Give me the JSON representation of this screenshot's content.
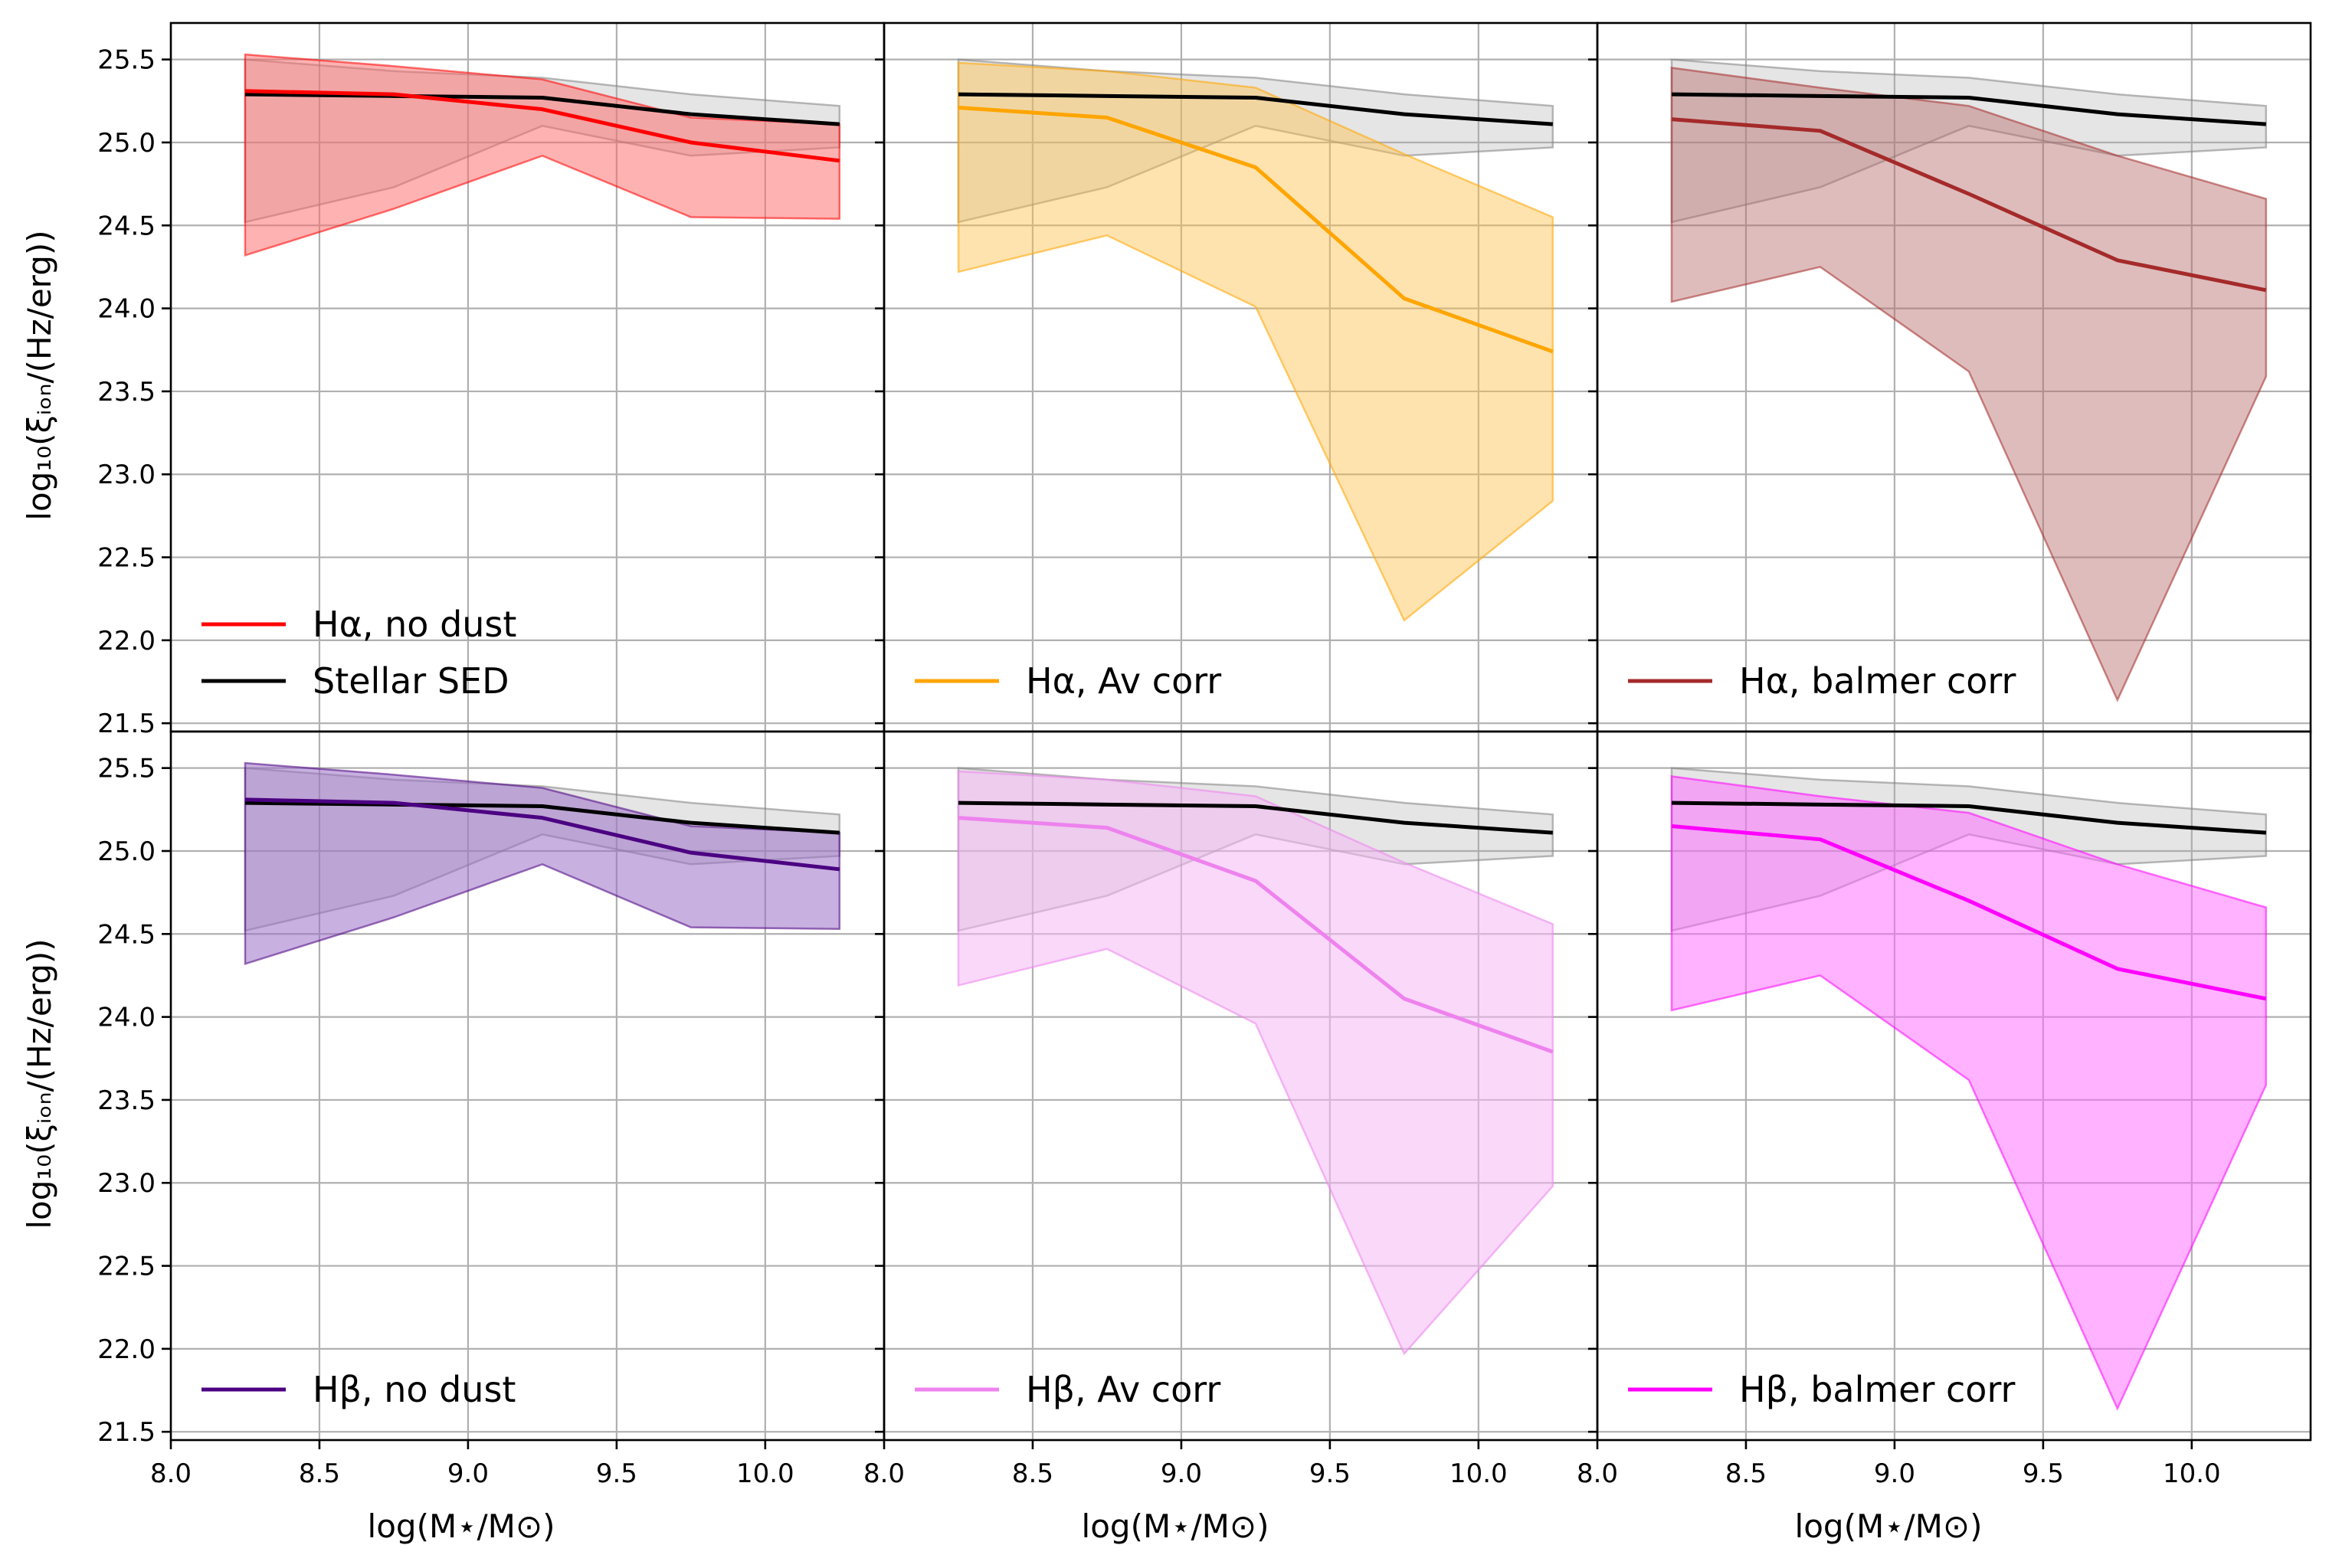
{
  "figure": {
    "ylabel": "log₁₀(ξᵢₒₙ/(Hz/erg))",
    "xlabel": "log(M⋆/M⊙)"
  },
  "chart_data": {
    "type": "line",
    "layout": "2x3 grid of panels sharing axes",
    "xlim": [
      8.0,
      10.4
    ],
    "ylim": [
      21.45,
      25.72
    ],
    "xticks": [
      "8.0",
      "8.5",
      "9.0",
      "9.5",
      "10.0"
    ],
    "yticks": [
      "21.5",
      "22.0",
      "22.5",
      "23.0",
      "23.5",
      "24.0",
      "24.5",
      "25.0",
      "25.5"
    ],
    "grid": true,
    "x": [
      8.25,
      8.75,
      9.25,
      9.75,
      10.25
    ],
    "reference": {
      "name": "Stellar SED",
      "color": "#000000",
      "values": [
        25.29,
        25.28,
        25.27,
        25.17,
        25.11
      ],
      "lower": [
        24.52,
        24.73,
        25.1,
        24.92,
        24.97
      ],
      "upper": [
        25.5,
        25.43,
        25.39,
        25.29,
        25.22
      ]
    },
    "panels": [
      {
        "name": "Hα, no dust",
        "color": "#ff0000",
        "fill": "#ff6666",
        "fill_opacity": 0.5,
        "values": [
          25.31,
          25.29,
          25.2,
          25.0,
          24.89
        ],
        "lower": [
          24.32,
          24.6,
          24.92,
          24.55,
          24.54
        ],
        "upper": [
          25.53,
          25.46,
          25.38,
          25.15,
          25.11
        ],
        "legend": [
          "Hα, no dust",
          "Stellar SED"
        ]
      },
      {
        "name": "Hα, Av corr",
        "color": "#ffa500",
        "fill": "#ffc04d",
        "fill_opacity": 0.45,
        "values": [
          25.21,
          25.15,
          24.85,
          24.06,
          23.74
        ],
        "lower": [
          24.22,
          24.44,
          24.01,
          22.12,
          22.84
        ],
        "upper": [
          25.48,
          25.43,
          25.33,
          24.93,
          24.55
        ],
        "legend": [
          "Hα, Av corr"
        ]
      },
      {
        "name": "Hα, balmer corr",
        "color": "#a52a2a",
        "fill": "#b56a6a",
        "fill_opacity": 0.45,
        "values": [
          25.14,
          25.07,
          24.69,
          24.29,
          24.11
        ],
        "lower": [
          24.04,
          24.25,
          23.62,
          21.64,
          23.59
        ],
        "upper": [
          25.45,
          25.33,
          25.22,
          24.92,
          24.66
        ],
        "legend": [
          "Hα, balmer corr"
        ]
      },
      {
        "name": "Hβ, no dust",
        "color": "#4b0082",
        "fill": "#9b6fc7",
        "fill_opacity": 0.55,
        "values": [
          25.31,
          25.29,
          25.2,
          24.99,
          24.89
        ],
        "lower": [
          24.32,
          24.6,
          24.92,
          24.54,
          24.53
        ],
        "upper": [
          25.53,
          25.46,
          25.38,
          25.15,
          25.11
        ],
        "legend": [
          "Hβ, no dust"
        ]
      },
      {
        "name": "Hβ, Av corr",
        "color": "#ee82ee",
        "fill": "#f4b8f4",
        "fill_opacity": 0.55,
        "values": [
          25.2,
          25.14,
          24.82,
          24.11,
          23.79
        ],
        "lower": [
          24.19,
          24.41,
          23.96,
          21.97,
          22.98
        ],
        "upper": [
          25.48,
          25.43,
          25.33,
          24.93,
          24.56
        ],
        "legend": [
          "Hβ, Av corr"
        ]
      },
      {
        "name": "Hβ, balmer corr",
        "color": "#ff00ff",
        "fill": "#ff66ff",
        "fill_opacity": 0.5,
        "values": [
          25.15,
          25.07,
          24.7,
          24.29,
          24.11
        ],
        "lower": [
          24.04,
          24.25,
          23.62,
          21.64,
          23.59
        ],
        "upper": [
          25.45,
          25.33,
          25.23,
          24.92,
          24.66
        ],
        "legend": [
          "Hβ, balmer corr"
        ]
      }
    ]
  }
}
